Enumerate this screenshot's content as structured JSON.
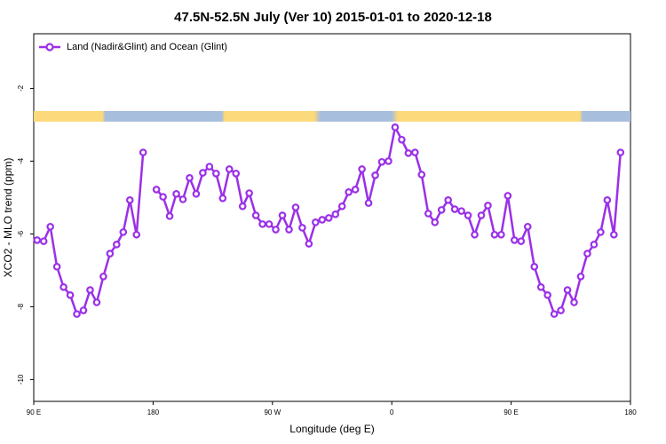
{
  "chart_data": {
    "type": "line",
    "title": "47.5N-52.5N July (Ver 10)   2015-01-01 to 2020-12-18",
    "x_label": "Longitude (deg E)",
    "y_label": "XCO2 - MLO trend (ppm)",
    "xlim": [
      90,
      540
    ],
    "xticks": [
      {
        "value": 90,
        "label": "90 E"
      },
      180,
      {
        "value": 270,
        "label": "90 W"
      },
      {
        "value": 360,
        "label": "0"
      },
      {
        "value": 450,
        "label": "90 E"
      },
      {
        "value": 540,
        "label": "180"
      }
    ],
    "ylim": [
      -10.6,
      -0.5
    ],
    "yticks": [
      -2,
      -4,
      -6,
      -8,
      -10
    ],
    "legend": "top-left",
    "x": [
      92.5,
      97.5,
      102.5,
      107.5,
      112.5,
      117.5,
      122.5,
      127.5,
      132.5,
      137.5,
      142.5,
      147.5,
      152.5,
      157.5,
      162.5,
      167.5,
      172.5,
      177.5,
      182.5,
      187.5,
      192.5,
      197.5,
      202.5,
      207.5,
      212.5,
      217.5,
      222.5,
      227.5,
      232.5,
      237.5,
      242.5,
      247.5,
      252.5,
      257.5,
      262.5,
      267.5,
      272.5,
      277.5,
      282.5,
      287.5,
      292.5,
      297.5,
      302.5,
      307.5,
      312.5,
      317.5,
      322.5,
      327.5,
      332.5,
      337.5,
      342.5,
      347.5,
      352.5,
      357.5,
      362.5,
      367.5,
      372.5,
      377.5,
      382.5,
      387.5,
      392.5,
      397.5,
      402.5,
      407.5,
      412.5,
      417.5,
      422.5,
      427.5,
      432.5,
      437.5,
      442.5,
      447.5,
      452.5,
      457.5,
      462.5,
      467.5,
      472.5,
      477.5,
      482.5,
      487.5,
      492.5,
      497.5,
      502.5,
      507.5,
      512.5,
      517.5,
      522.5,
      527.5,
      532.5
    ],
    "series": [
      {
        "name": "Land (Nadir&Glint) and Ocean (Glint)",
        "color": "#9b30e8",
        "values": [
          -6.17,
          -6.2,
          -5.8,
          -6.9,
          -7.46,
          -7.68,
          -8.2,
          -8.1,
          -7.54,
          -7.88,
          -7.17,
          -6.54,
          -6.29,
          -5.95,
          -5.07,
          -6.02,
          -3.76,
          null,
          -4.78,
          -4.98,
          -5.51,
          -4.9,
          -5.05,
          -4.46,
          -4.9,
          -4.32,
          -4.15,
          -4.34,
          -5.02,
          -4.22,
          -4.34,
          -5.24,
          -4.88,
          -5.49,
          -5.73,
          -5.73,
          -5.88,
          -5.49,
          -5.88,
          -5.27,
          -5.83,
          -6.27,
          -5.68,
          -5.61,
          -5.56,
          -5.46,
          -5.24,
          -4.85,
          -4.78,
          -4.22,
          -5.15,
          -4.39,
          -4.02,
          -4.0,
          -3.07,
          -3.41,
          -3.78,
          -3.76,
          -4.37,
          -5.44,
          -5.68,
          -5.34,
          -5.07,
          -5.32,
          -5.37,
          -5.49,
          -6.02,
          -5.49,
          -5.22,
          -6.02,
          -6.02,
          -4.95,
          -6.17,
          -6.2,
          -5.8,
          -6.9,
          -7.46,
          -7.68,
          -8.2,
          -8.1,
          -7.54,
          -7.88,
          -7.17,
          -6.54,
          -6.29,
          -5.95,
          -5.07,
          -6.02,
          -3.76
        ]
      }
    ]
  }
}
